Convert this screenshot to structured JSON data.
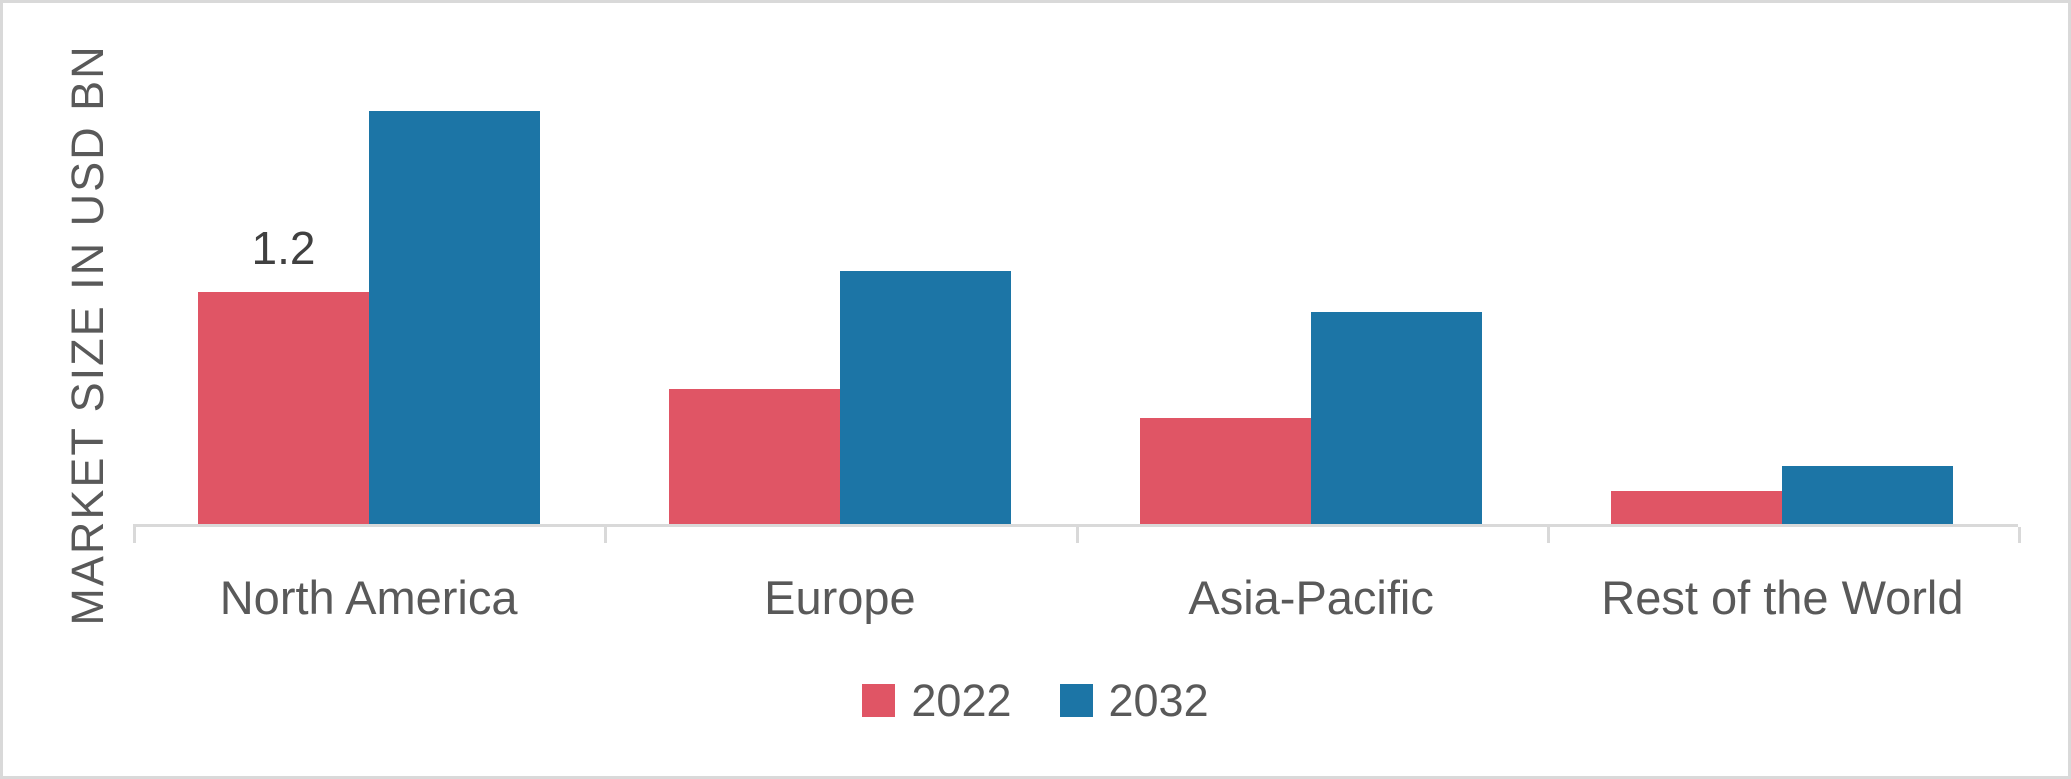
{
  "chart_data": {
    "type": "bar",
    "title": "",
    "xlabel": "",
    "ylabel": "MARKET SIZE IN USD BN",
    "categories": [
      "North America",
      "Europe",
      "Asia-Pacific",
      "Rest of the World"
    ],
    "series": [
      {
        "name": "2022",
        "color": "#e05565",
        "values": [
          1.2,
          0.7,
          0.55,
          0.17
        ]
      },
      {
        "name": "2032",
        "color": "#1c75a6",
        "values": [
          2.14,
          1.31,
          1.1,
          0.3
        ]
      }
    ],
    "data_labels": [
      {
        "series": "2022",
        "category": "North America",
        "text": "1.2"
      }
    ],
    "ylim": [
      0,
      2.4
    ],
    "grid": false,
    "y_ticks_visible": false,
    "legend_position": "bottom-center",
    "axis_color": "#d9d9d9",
    "label_color": "#595959",
    "data_label_color": "#404040"
  }
}
